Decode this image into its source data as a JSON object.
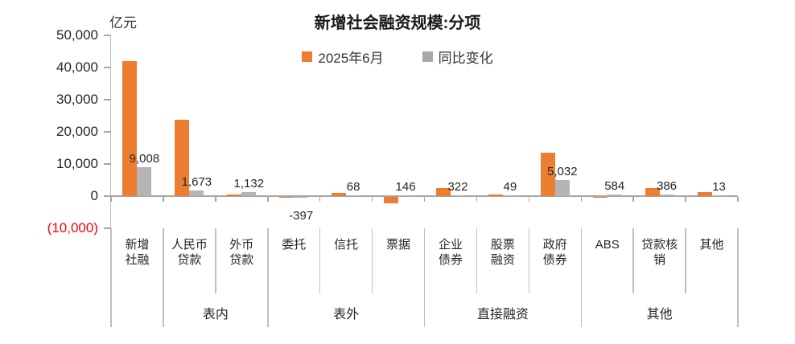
{
  "chart": {
    "title": "新增社会融资规模:分项",
    "unit": "亿元",
    "colors": {
      "current_series": "#ED7D31",
      "yoy_series_bar": "#B5B5B5",
      "yoy_series_legend": "#A9A9A9",
      "axis": "#A6A6A6",
      "divider": "#BFBFBF",
      "text": "#262626",
      "negative_y_label": "#FF0000"
    },
    "chart_data": {
      "type": "bar",
      "title": "新增社会融资规模:分项",
      "ylabel": "亿元",
      "ylim": [
        -10000,
        50000
      ],
      "grid": false,
      "legend_position": "top",
      "y_ticks": [
        {
          "label": "50,000",
          "value": 50000
        },
        {
          "label": "40,000",
          "value": 40000
        },
        {
          "label": "30,000",
          "value": 30000
        },
        {
          "label": "20,000",
          "value": 20000
        },
        {
          "label": "10,000",
          "value": 10000
        },
        {
          "label": "0",
          "value": 0
        },
        {
          "label": "(10,000)",
          "value": -10000
        }
      ],
      "categories": [
        "新增社融",
        "人民币贷款",
        "外币贷款",
        "委托",
        "信托",
        "票据",
        "企业债券",
        "股票融资",
        "政府债券",
        "ABS",
        "贷款核销",
        "其他"
      ],
      "category_display": [
        [
          "新增",
          "社融"
        ],
        [
          "人民币",
          "贷款"
        ],
        [
          "外币",
          "贷款"
        ],
        [
          "委托"
        ],
        [
          "信托"
        ],
        [
          "票据"
        ],
        [
          "企业",
          "债券"
        ],
        [
          "股票",
          "融资"
        ],
        [
          "政府",
          "债券"
        ],
        [
          "ABS"
        ],
        [
          "贷款核",
          "销"
        ],
        [
          "其他"
        ]
      ],
      "groups": [
        {
          "label": "表内",
          "from": 1,
          "to": 3
        },
        {
          "label": "表外",
          "from": 3,
          "to": 6
        },
        {
          "label": "直接融资",
          "from": 6,
          "to": 9
        },
        {
          "label": "其他",
          "from": 9,
          "to": 12
        }
      ],
      "series": [
        {
          "name": "2025年6月",
          "color": "#ED7D31",
          "values": [
            42000,
            23700,
            400,
            -150,
            1000,
            -2000,
            2500,
            400,
            13500,
            -100,
            2400,
            1200
          ]
        },
        {
          "name": "同比变化",
          "color": "#B5B5B5",
          "values": [
            9008,
            1673,
            1132,
            -397,
            68,
            146,
            322,
            49,
            5032,
            584,
            386,
            13
          ],
          "labels": [
            "9,008",
            "1,673",
            "1,132",
            "-397",
            "68",
            "146",
            "322",
            "49",
            "5,032",
            "584",
            "386",
            "13"
          ]
        }
      ]
    }
  }
}
